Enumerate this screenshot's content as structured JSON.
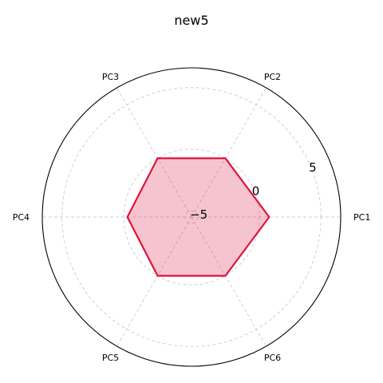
{
  "chart_data": {
    "type": "radar",
    "title": "new5",
    "categories": [
      "PC1",
      "PC2",
      "PC3",
      "PC4",
      "PC5",
      "PC6"
    ],
    "series": [
      {
        "values": [
          0.8,
          0.0,
          0.0,
          -0.3,
          0.0,
          0.0
        ],
        "line_color": "#dc143c",
        "fill_color": "#dc143c",
        "fill_opacity": 0.25
      }
    ],
    "r_ticks": [
      -5,
      0,
      5
    ],
    "r_tick_labels": [
      "−5",
      "0",
      "5"
    ],
    "rlim": [
      -5.5,
      6.6
    ],
    "grid": true,
    "grid_color": "#cccccc"
  }
}
